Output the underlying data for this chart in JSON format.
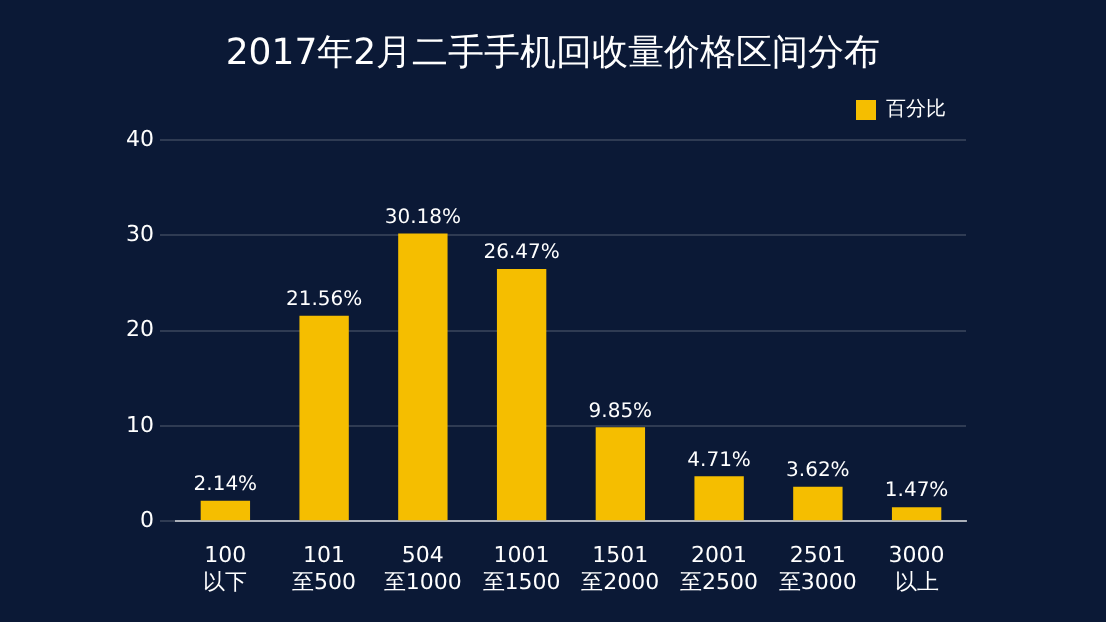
{
  "chart_data": {
    "type": "bar",
    "title": "2017年2月二手手机回收量价格区间分布",
    "categories": [
      "100\n以下",
      "101\n至500",
      "504\n至1000",
      "1001\n至1500",
      "1501\n至2000",
      "2001\n至2500",
      "2501\n至3000",
      "3000\n以上"
    ],
    "series": [
      {
        "name": "百分比",
        "color": "#f5be00",
        "values": [
          2.14,
          21.56,
          30.18,
          26.47,
          9.85,
          4.71,
          3.62,
          1.47
        ],
        "value_labels": [
          "2.14%",
          "21.56%",
          "30.18%",
          "26.47%",
          "9.85%",
          "4.71%",
          "3.62%",
          "1.47%"
        ]
      }
    ],
    "ylim": [
      0,
      40
    ],
    "yticks": [
      0,
      10,
      20,
      30,
      40
    ],
    "grid": "y",
    "legend": "top right"
  }
}
